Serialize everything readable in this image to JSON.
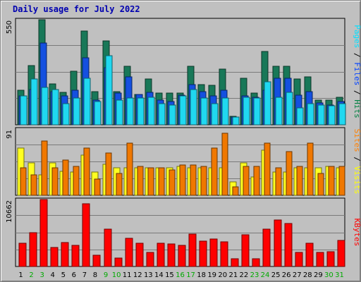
{
  "title": "Daily usage for July 2022",
  "chart_data": [
    {
      "type": "bar",
      "panel": "hits-files-pages",
      "ymax_label": "550",
      "ylim": [
        0,
        550
      ],
      "grid": true,
      "legend_placement": "right-vertical",
      "legend": [
        {
          "name": "Pages",
          "color": "#00e0ff"
        },
        {
          "name": "Files",
          "color": "#0040ff"
        },
        {
          "name": "Hits",
          "color": "#008040"
        }
      ],
      "series": [
        {
          "name": "Hits",
          "color": "#187858",
          "values": [
            180,
            310,
            550,
            215,
            170,
            280,
            490,
            175,
            440,
            175,
            305,
            160,
            240,
            165,
            165,
            165,
            305,
            210,
            205,
            290,
            45,
            245,
            165,
            385,
            305,
            305,
            240,
            250,
            130,
            130,
            145
          ]
        },
        {
          "name": "Files",
          "color": "#1450e0",
          "values": [
            150,
            185,
            430,
            175,
            150,
            180,
            350,
            130,
            300,
            165,
            250,
            160,
            170,
            130,
            120,
            155,
            210,
            175,
            150,
            180,
            40,
            150,
            145,
            180,
            245,
            245,
            155,
            175,
            115,
            105,
            120
          ]
        },
        {
          "name": "Pages",
          "color": "#20d8f0",
          "values": [
            150,
            240,
            195,
            185,
            110,
            140,
            245,
            120,
            360,
            130,
            140,
            140,
            145,
            110,
            105,
            150,
            185,
            140,
            110,
            140,
            40,
            145,
            140,
            225,
            145,
            170,
            90,
            110,
            105,
            100,
            110
          ]
        }
      ]
    },
    {
      "type": "bar",
      "panel": "visits-sites",
      "ymax_label": "91",
      "ylim": [
        0,
        91
      ],
      "grid": true,
      "legend_placement": "right-vertical",
      "legend": [
        {
          "name": "Sites",
          "color": "#ff8000"
        },
        {
          "name": "Visits",
          "color": "#ffff00"
        }
      ],
      "series": [
        {
          "name": "Visits",
          "color": "#ffff20",
          "values": [
            65,
            45,
            28,
            45,
            33,
            32,
            55,
            32,
            43,
            38,
            38,
            38,
            38,
            38,
            38,
            40,
            38,
            38,
            38,
            38,
            18,
            45,
            25,
            62,
            32,
            32,
            38,
            38,
            38,
            40,
            38
          ]
        },
        {
          "name": "Sites",
          "color": "#f07800",
          "values": [
            38,
            28,
            75,
            38,
            48,
            40,
            65,
            22,
            58,
            30,
            72,
            40,
            38,
            38,
            35,
            42,
            42,
            40,
            65,
            85,
            12,
            40,
            40,
            72,
            38,
            60,
            40,
            72,
            30,
            40,
            40
          ]
        }
      ]
    },
    {
      "type": "bar",
      "panel": "kbytes",
      "ymax_label": "10662",
      "ylim": [
        0,
        10662
      ],
      "grid": true,
      "legend_placement": "right-vertical",
      "legend": [
        {
          "name": "KBytes",
          "color": "#ff0000"
        }
      ],
      "series": [
        {
          "name": "KBytes",
          "color": "#ff0000",
          "values": [
            3700,
            5400,
            10662,
            3000,
            3800,
            3400,
            10000,
            1800,
            6000,
            1300,
            4500,
            3700,
            2200,
            3700,
            3600,
            3400,
            5200,
            4000,
            4400,
            3900,
            1200,
            5100,
            1200,
            6000,
            7400,
            6800,
            2200,
            3700,
            2200,
            2400,
            4100
          ]
        }
      ]
    }
  ],
  "x_labels": [
    "1",
    "2",
    "3",
    "4",
    "5",
    "6",
    "7",
    "8",
    "9",
    "10",
    "11",
    "12",
    "13",
    "14",
    "15",
    "16",
    "17",
    "18",
    "19",
    "20",
    "21",
    "22",
    "23",
    "24",
    "25",
    "26",
    "27",
    "28",
    "29",
    "30",
    "31"
  ],
  "weekend_days": [
    2,
    3,
    9,
    10,
    16,
    17,
    23,
    24,
    30,
    31
  ],
  "colors": {
    "weekday_label": "#000000",
    "weekend_label": "#00aa00",
    "title": "#0000b0",
    "grid": "#7a7a7a",
    "panel_bg": "#c0c0c0",
    "separator": "#000000"
  }
}
